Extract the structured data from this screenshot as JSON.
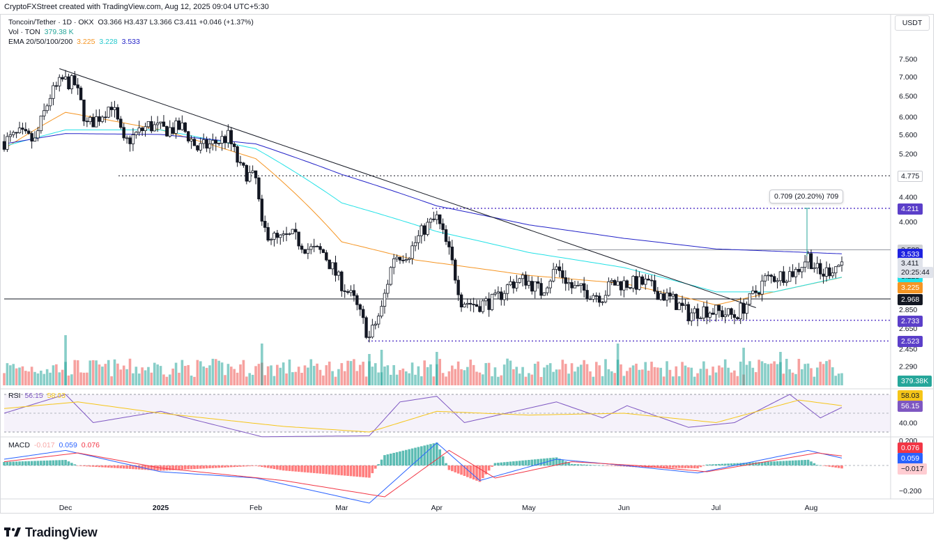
{
  "header": {
    "credit": "CryptoFXStreet created with TradingView.com, Aug 12, 2025 09:04 UTC+5:30"
  },
  "legend": {
    "symbol": "Toncoin/Tether · 1D · OKX",
    "ohlc": "O3.366 H3.437 L3.366 C3.411 +0.046 (+1.37%)",
    "vol_label": "Vol · TON",
    "vol_value": "379.38 K",
    "ema_label": "EMA 20/50/100/200",
    "ema20": "3.225",
    "ema50": "3.228",
    "ema100": "3.533",
    "rsi_label": "RSI",
    "rsi_value": "56.15",
    "rsi_ma": "58.03",
    "macd_label": "MACD",
    "macd_hist": "-0.017",
    "macd_line": "0.059",
    "macd_signal": "0.076"
  },
  "currency_button": "USDT",
  "measure_label": "0.709 (20.20%) 709",
  "footer": {
    "brand": "TradingView"
  },
  "price_labels": [
    {
      "text": "4.775",
      "bg": "#ffffff",
      "fg": "#131722",
      "border": "#c9cbd1",
      "price": 4.775
    },
    {
      "text": "4.211",
      "bg": "#5b3fc9",
      "fg": "#ffffff",
      "border": "#5b3fc9",
      "price": 4.211
    },
    {
      "text": "3.588",
      "bg": "#cfd1d6",
      "fg": "#131722",
      "border": "#cfd1d6",
      "price": 3.588
    },
    {
      "text": "3.533",
      "bg": "#1e22e0",
      "fg": "#ffffff",
      "border": "#1e22e0",
      "price": 3.533
    },
    {
      "text": "3.228",
      "bg": "#22e1e6",
      "fg": "#131722",
      "border": "#22e1e6",
      "price": 3.228
    },
    {
      "text": "3.225",
      "bg": "#f59523",
      "fg": "#ffffff",
      "border": "#f59523",
      "price": 3.225
    },
    {
      "text": "2.968",
      "bg": "#131722",
      "fg": "#ffffff",
      "border": "#131722",
      "price": 2.968
    },
    {
      "text": "2.733",
      "bg": "#5b3fc9",
      "fg": "#ffffff",
      "border": "#5b3fc9",
      "price": 2.733
    },
    {
      "text": "2.523",
      "bg": "#5b3fc9",
      "fg": "#ffffff",
      "border": "#5b3fc9",
      "price": 2.523
    }
  ],
  "last_price": {
    "price": "3.411",
    "countdown": "20:25:44"
  },
  "volume_label": "379.38K",
  "rsi_labels": {
    "ma": "58.03",
    "rsi": "56.15"
  },
  "macd_labels": {
    "signal": "0.076",
    "macd": "0.059",
    "hist": "−0.017"
  },
  "chart_data": [
    {
      "type": "candlestick",
      "title": "Toncoin/Tether · 1D · OKX",
      "x_ticks": [
        "Dec",
        "2025",
        "Feb",
        "Mar",
        "Apr",
        "May",
        "Jun",
        "Jul",
        "Aug"
      ],
      "y_ticks": [
        7.5,
        7.0,
        6.5,
        6.0,
        5.6,
        5.2,
        4.4,
        4.0,
        2.85,
        2.65,
        2.45,
        2.29
      ],
      "y_scale": "log",
      "horizontal_levels": [
        4.775,
        4.211,
        3.588,
        2.968,
        2.733,
        2.523
      ],
      "trendline": [
        {
          "date": "2024-11-29",
          "price": 7.22
        },
        {
          "date": "2025-07-14",
          "price": 2.87
        }
      ],
      "close_path": [
        [
          "2024-11-11",
          5.45
        ],
        [
          "2024-11-16",
          5.6
        ],
        [
          "2024-11-21",
          5.45
        ],
        [
          "2024-11-26",
          6.5
        ],
        [
          "2024-11-30",
          6.9
        ],
        [
          "2024-12-04",
          6.8
        ],
        [
          "2024-12-08",
          5.8
        ],
        [
          "2024-12-12",
          6.0
        ],
        [
          "2024-12-16",
          6.3
        ],
        [
          "2024-12-20",
          5.4
        ],
        [
          "2024-12-24",
          5.6
        ],
        [
          "2024-12-28",
          5.8
        ],
        [
          "2025-01-02",
          5.7
        ],
        [
          "2025-01-08",
          5.75
        ],
        [
          "2025-01-13",
          5.3
        ],
        [
          "2025-01-18",
          5.4
        ],
        [
          "2025-01-23",
          5.55
        ],
        [
          "2025-01-27",
          4.9
        ],
        [
          "2025-02-01",
          4.7
        ],
        [
          "2025-02-03",
          3.9
        ],
        [
          "2025-02-08",
          3.72
        ],
        [
          "2025-02-13",
          3.78
        ],
        [
          "2025-02-18",
          3.6
        ],
        [
          "2025-02-23",
          3.55
        ],
        [
          "2025-02-28",
          3.2
        ],
        [
          "2025-03-05",
          2.95
        ],
        [
          "2025-03-10",
          2.55
        ],
        [
          "2025-03-14",
          2.85
        ],
        [
          "2025-03-18",
          3.5
        ],
        [
          "2025-03-23",
          3.55
        ],
        [
          "2025-03-28",
          3.9
        ],
        [
          "2025-04-01",
          4.05
        ],
        [
          "2025-04-05",
          3.55
        ],
        [
          "2025-04-09",
          2.95
        ],
        [
          "2025-04-14",
          2.9
        ],
        [
          "2025-04-20",
          2.95
        ],
        [
          "2025-04-25",
          3.15
        ],
        [
          "2025-04-30",
          3.2
        ],
        [
          "2025-05-05",
          3.05
        ],
        [
          "2025-05-10",
          3.35
        ],
        [
          "2025-05-15",
          3.1
        ],
        [
          "2025-05-20",
          3.05
        ],
        [
          "2025-05-25",
          3.0
        ],
        [
          "2025-05-28",
          3.15
        ],
        [
          "2025-06-02",
          3.15
        ],
        [
          "2025-06-08",
          3.15
        ],
        [
          "2025-06-12",
          3.05
        ],
        [
          "2025-06-17",
          2.95
        ],
        [
          "2025-06-22",
          2.8
        ],
        [
          "2025-06-27",
          2.85
        ],
        [
          "2025-07-02",
          2.82
        ],
        [
          "2025-07-07",
          2.78
        ],
        [
          "2025-07-12",
          2.95
        ],
        [
          "2025-07-17",
          3.2
        ],
        [
          "2025-07-22",
          3.25
        ],
        [
          "2025-07-27",
          3.3
        ],
        [
          "2025-07-31",
          3.5
        ],
        [
          "2025-08-04",
          3.25
        ],
        [
          "2025-08-08",
          3.35
        ],
        [
          "2025-08-11",
          3.411
        ]
      ],
      "series": [
        {
          "name": "EMA 20",
          "color": "#f59523",
          "values": [
            [
              "2024-11-11",
              5.3
            ],
            [
              "2024-12-01",
              6.1
            ],
            [
              "2025-01-01",
              5.7
            ],
            [
              "2025-02-01",
              5.1
            ],
            [
              "2025-03-01",
              3.7
            ],
            [
              "2025-03-25",
              3.45
            ],
            [
              "2025-05-01",
              3.25
            ],
            [
              "2025-06-01",
              3.15
            ],
            [
              "2025-07-01",
              2.9
            ],
            [
              "2025-07-20",
              3.05
            ],
            [
              "2025-08-11",
              3.225
            ]
          ]
        },
        {
          "name": "EMA 50",
          "color": "#22e1e6",
          "values": [
            [
              "2024-11-11",
              5.35
            ],
            [
              "2024-12-01",
              5.7
            ],
            [
              "2025-01-01",
              5.7
            ],
            [
              "2025-02-01",
              5.3
            ],
            [
              "2025-03-01",
              4.3
            ],
            [
              "2025-04-01",
              3.85
            ],
            [
              "2025-05-01",
              3.55
            ],
            [
              "2025-06-01",
              3.35
            ],
            [
              "2025-07-01",
              3.05
            ],
            [
              "2025-07-20",
              3.05
            ],
            [
              "2025-08-11",
              3.228
            ]
          ]
        },
        {
          "name": "EMA 200",
          "color": "#2222c8",
          "values": [
            [
              "2024-11-11",
              5.4
            ],
            [
              "2024-12-01",
              5.62
            ],
            [
              "2025-01-01",
              5.6
            ],
            [
              "2025-02-01",
              5.4
            ],
            [
              "2025-03-01",
              4.8
            ],
            [
              "2025-04-01",
              4.25
            ],
            [
              "2025-05-01",
              3.95
            ],
            [
              "2025-06-01",
              3.75
            ],
            [
              "2025-07-01",
              3.6
            ],
            [
              "2025-08-11",
              3.533
            ]
          ]
        }
      ],
      "measure": {
        "from": 3.502,
        "to": 4.211,
        "change": 0.709,
        "percent": 20.2
      }
    },
    {
      "type": "bar",
      "title": "Vol · TON",
      "last": "379.38K",
      "colors": {
        "up": "#26a69a",
        "down": "#ef5350"
      }
    },
    {
      "type": "line",
      "title": "RSI",
      "ylim": [
        20,
        80
      ],
      "y_ticks": [
        40
      ],
      "band": [
        30,
        70
      ],
      "series": [
        {
          "name": "RSI",
          "color": "#7e57c2",
          "values": [
            [
              "2024-11-11",
              50
            ],
            [
              "2024-12-01",
              70
            ],
            [
              "2024-12-10",
              40
            ],
            [
              "2025-01-01",
              52
            ],
            [
              "2025-02-03",
              25
            ],
            [
              "2025-03-10",
              26
            ],
            [
              "2025-03-20",
              62
            ],
            [
              "2025-04-01",
              68
            ],
            [
              "2025-04-10",
              40
            ],
            [
              "2025-05-10",
              62
            ],
            [
              "2025-05-25",
              45
            ],
            [
              "2025-06-02",
              58
            ],
            [
              "2025-06-22",
              35
            ],
            [
              "2025-07-07",
              40
            ],
            [
              "2025-07-25",
              70
            ],
            [
              "2025-08-04",
              45
            ],
            [
              "2025-08-11",
              56.15
            ]
          ]
        },
        {
          "name": "RSI-based MA",
          "color": "#f5c518",
          "values": [
            [
              "2024-11-11",
              55
            ],
            [
              "2024-12-05",
              62
            ],
            [
              "2025-01-01",
              50
            ],
            [
              "2025-02-10",
              36
            ],
            [
              "2025-03-10",
              30
            ],
            [
              "2025-04-01",
              52
            ],
            [
              "2025-05-01",
              48
            ],
            [
              "2025-06-01",
              50
            ],
            [
              "2025-07-01",
              40
            ],
            [
              "2025-07-28",
              64
            ],
            [
              "2025-08-11",
              58.03
            ]
          ]
        }
      ]
    },
    {
      "type": "line",
      "title": "MACD",
      "ylim": [
        -0.26,
        0.2
      ],
      "y_ticks": [
        0.2,
        -0.2
      ],
      "series": [
        {
          "name": "MACD",
          "color": "#2962ff",
          "values": [
            [
              "2024-11-11",
              0.05
            ],
            [
              "2024-12-01",
              0.12
            ],
            [
              "2025-01-01",
              -0.05
            ],
            [
              "2025-02-01",
              -0.1
            ],
            [
              "2025-03-10",
              -0.3
            ],
            [
              "2025-04-01",
              0.18
            ],
            [
              "2025-04-15",
              -0.12
            ],
            [
              "2025-05-10",
              0.05
            ],
            [
              "2025-06-01",
              0.0
            ],
            [
              "2025-06-25",
              -0.06
            ],
            [
              "2025-07-31",
              0.12
            ],
            [
              "2025-08-11",
              0.059
            ]
          ]
        },
        {
          "name": "Signal",
          "color": "#f23645",
          "values": [
            [
              "2024-11-11",
              0.03
            ],
            [
              "2024-12-05",
              0.1
            ],
            [
              "2025-01-01",
              -0.02
            ],
            [
              "2025-02-10",
              -0.12
            ],
            [
              "2025-03-15",
              -0.25
            ],
            [
              "2025-04-05",
              0.12
            ],
            [
              "2025-04-20",
              -0.1
            ],
            [
              "2025-05-15",
              0.03
            ],
            [
              "2025-06-05",
              0.0
            ],
            [
              "2025-06-28",
              -0.05
            ],
            [
              "2025-08-03",
              0.1
            ],
            [
              "2025-08-11",
              0.076
            ]
          ]
        }
      ]
    }
  ]
}
